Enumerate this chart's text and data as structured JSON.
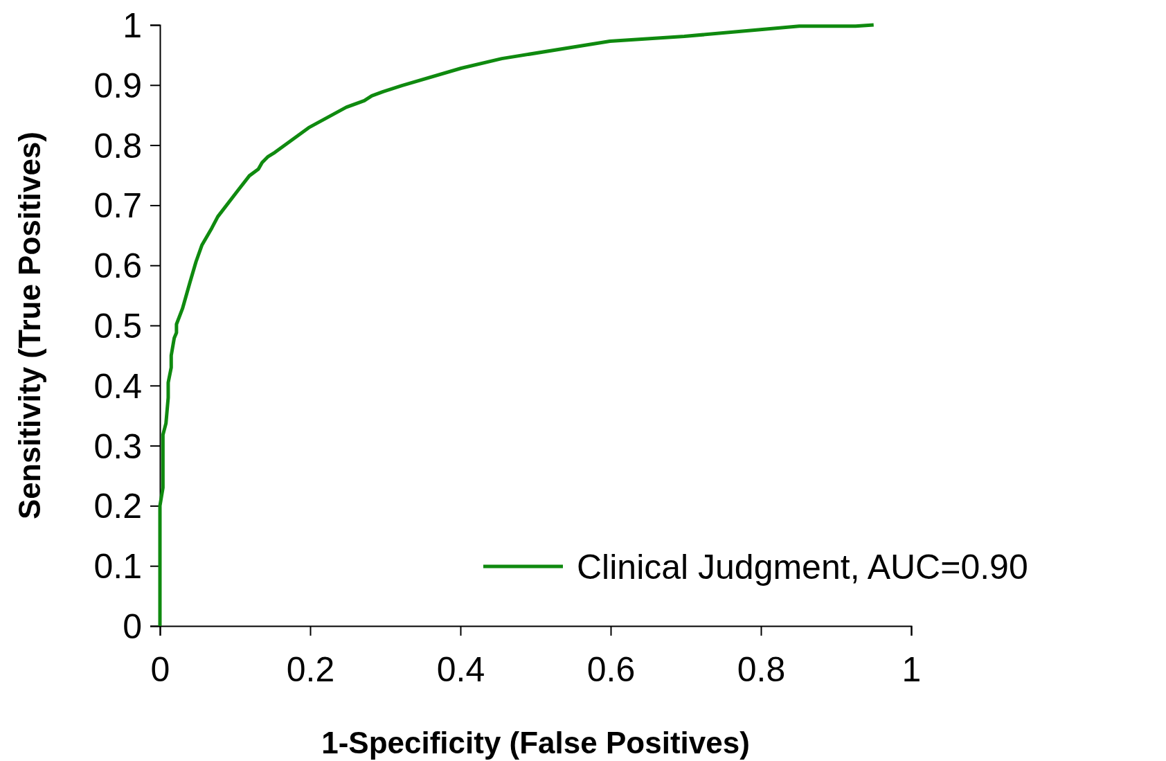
{
  "chart_data": {
    "type": "line",
    "xlabel": "1-Specificity (False Positives)",
    "ylabel": "Sensitivity (True Positives)",
    "xlim": [
      0,
      1
    ],
    "ylim": [
      0,
      1
    ],
    "xticks": [
      0,
      0.2,
      0.4,
      0.6,
      0.8,
      1
    ],
    "yticks": [
      0,
      0.1,
      0.2,
      0.3,
      0.4,
      0.5,
      0.6,
      0.7,
      0.8,
      0.9,
      1
    ],
    "grid": false,
    "legend": "bottom right",
    "marker": "none",
    "line_style": "solid",
    "series": [
      {
        "name": "Clinical Judgment, AUC=0.90",
        "color": "#0f8a0f",
        "x": [
          0,
          0,
          0.004,
          0.004,
          0.008,
          0.011,
          0.011,
          0.015,
          0.015,
          0.019,
          0.022,
          0.022,
          0.03,
          0.04,
          0.048,
          0.056,
          0.069,
          0.077,
          0.104,
          0.119,
          0.131,
          0.136,
          0.144,
          0.153,
          0.198,
          0.248,
          0.272,
          0.282,
          0.297,
          0.322,
          0.401,
          0.455,
          0.599,
          0.698,
          0.807,
          0.851,
          0.926,
          0.95
        ],
        "values": [
          0,
          0.2,
          0.23,
          0.318,
          0.337,
          0.38,
          0.405,
          0.43,
          0.45,
          0.479,
          0.488,
          0.502,
          0.528,
          0.572,
          0.606,
          0.634,
          0.662,
          0.681,
          0.725,
          0.749,
          0.76,
          0.771,
          0.781,
          0.788,
          0.829,
          0.863,
          0.874,
          0.882,
          0.889,
          0.899,
          0.928,
          0.944,
          0.973,
          0.981,
          0.993,
          0.998,
          0.998,
          1
        ]
      }
    ]
  }
}
